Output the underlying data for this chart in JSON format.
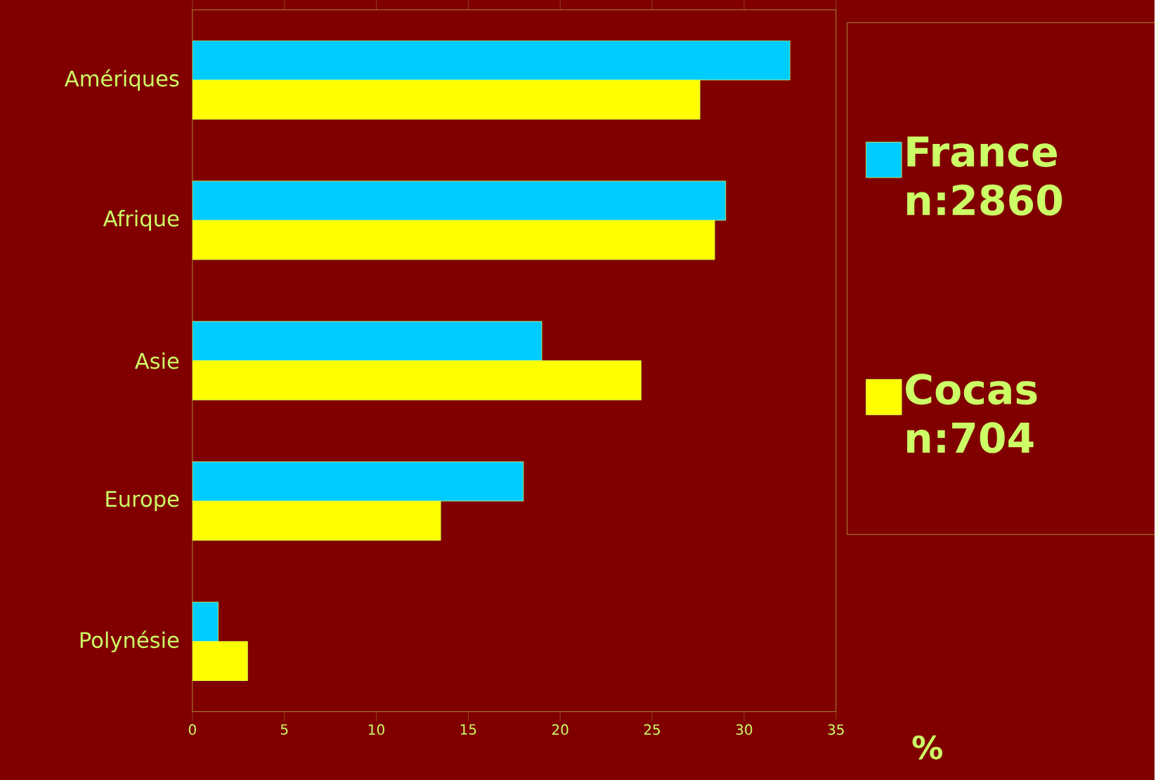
{
  "chart_data": {
    "type": "bar",
    "orientation": "horizontal",
    "categories": [
      "Amériques",
      "Afrique",
      "Asie",
      "Europe",
      "Polynésie"
    ],
    "series": [
      {
        "name": "France n:2860",
        "color": "#00ccff",
        "values": [
          32.5,
          29.0,
          19.0,
          18.0,
          1.4
        ]
      },
      {
        "name": "Cocas n:704",
        "color": "#ffff00",
        "values": [
          27.6,
          28.4,
          24.4,
          13.5,
          3.0
        ]
      }
    ],
    "xlim": [
      0,
      35
    ],
    "xticks": [
      0,
      5,
      10,
      15,
      20,
      25,
      30,
      35
    ],
    "xlabel": "%",
    "legend": "right",
    "grid": false
  }
}
